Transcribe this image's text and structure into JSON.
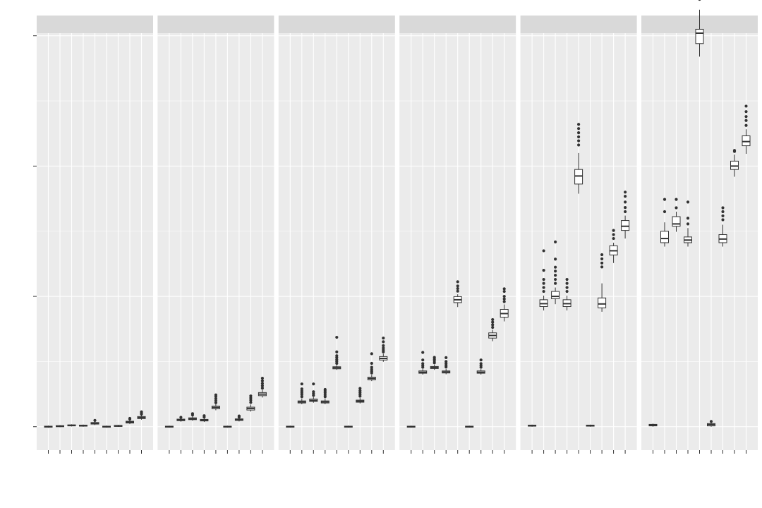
{
  "chart_data": {
    "type": "boxplot",
    "facets": 6,
    "boxes_per_panel": 9,
    "ylim": [
      -0.09,
      1.51
    ],
    "y_major_ticks": [
      0,
      0.5,
      1.0,
      1.5
    ],
    "y_minor_ticks": [
      0.25,
      0.75,
      1.25
    ],
    "grid": true,
    "panels": [
      {
        "boxes": [
          {
            "q1": -0.002,
            "med": 0.0,
            "q3": 0.002,
            "lo": -0.004,
            "hi": 0.004,
            "out": []
          },
          {
            "q1": 0.0,
            "med": 0.002,
            "q3": 0.004,
            "lo": -0.002,
            "hi": 0.006,
            "out": []
          },
          {
            "q1": 0.003,
            "med": 0.005,
            "q3": 0.007,
            "lo": 0.001,
            "hi": 0.009,
            "out": []
          },
          {
            "q1": 0.002,
            "med": 0.004,
            "q3": 0.006,
            "lo": 0.0,
            "hi": 0.008,
            "out": []
          },
          {
            "q1": 0.01,
            "med": 0.013,
            "q3": 0.016,
            "lo": 0.006,
            "hi": 0.02,
            "out": [
              0.024
            ]
          },
          {
            "q1": -0.002,
            "med": 0.0,
            "q3": 0.002,
            "lo": -0.004,
            "hi": 0.004,
            "out": []
          },
          {
            "q1": 0.001,
            "med": 0.003,
            "q3": 0.005,
            "lo": -0.001,
            "hi": 0.007,
            "out": []
          },
          {
            "q1": 0.014,
            "med": 0.017,
            "q3": 0.021,
            "lo": 0.01,
            "hi": 0.026,
            "out": [
              0.029,
              0.032
            ]
          },
          {
            "q1": 0.031,
            "med": 0.035,
            "q3": 0.039,
            "lo": 0.027,
            "hi": 0.044,
            "out": [
              0.048,
              0.053,
              0.057
            ]
          }
        ]
      },
      {
        "boxes": [
          {
            "q1": -0.002,
            "med": 0.0,
            "q3": 0.002,
            "lo": -0.004,
            "hi": 0.004,
            "out": []
          },
          {
            "q1": 0.023,
            "med": 0.026,
            "q3": 0.029,
            "lo": 0.019,
            "hi": 0.033,
            "out": [
              0.036
            ]
          },
          {
            "q1": 0.027,
            "med": 0.03,
            "q3": 0.034,
            "lo": 0.023,
            "hi": 0.04,
            "out": [
              0.045,
              0.05
            ]
          },
          {
            "q1": 0.022,
            "med": 0.025,
            "q3": 0.028,
            "lo": 0.018,
            "hi": 0.033,
            "out": [
              0.037,
              0.042
            ]
          },
          {
            "q1": 0.069,
            "med": 0.074,
            "q3": 0.079,
            "lo": 0.063,
            "hi": 0.087,
            "out": [
              0.092,
              0.1,
              0.108,
              0.116,
              0.122
            ]
          },
          {
            "q1": -0.002,
            "med": 0.0,
            "q3": 0.002,
            "lo": -0.004,
            "hi": 0.004,
            "out": []
          },
          {
            "q1": 0.024,
            "med": 0.027,
            "q3": 0.03,
            "lo": 0.02,
            "hi": 0.034,
            "out": [
              0.037,
              0.041
            ]
          },
          {
            "q1": 0.064,
            "med": 0.07,
            "q3": 0.075,
            "lo": 0.058,
            "hi": 0.085,
            "out": [
              0.093,
              0.102,
              0.11,
              0.118
            ]
          },
          {
            "q1": 0.119,
            "med": 0.125,
            "q3": 0.131,
            "lo": 0.112,
            "hi": 0.141,
            "out": [
              0.148,
              0.157,
              0.166,
              0.176,
              0.186
            ]
          }
        ]
      },
      {
        "boxes": [
          {
            "q1": -0.002,
            "med": 0.0,
            "q3": 0.002,
            "lo": -0.004,
            "hi": 0.004,
            "out": []
          },
          {
            "q1": 0.091,
            "med": 0.095,
            "q3": 0.099,
            "lo": 0.086,
            "hi": 0.108,
            "out": [
              0.115,
              0.123,
              0.13,
              0.137,
              0.145,
              0.164
            ]
          },
          {
            "q1": 0.097,
            "med": 0.101,
            "q3": 0.106,
            "lo": 0.092,
            "hi": 0.114,
            "out": [
              0.12,
              0.127,
              0.134,
              0.164
            ]
          },
          {
            "q1": 0.091,
            "med": 0.095,
            "q3": 0.099,
            "lo": 0.086,
            "hi": 0.108,
            "out": [
              0.115,
              0.122,
              0.13,
              0.137,
              0.143
            ]
          },
          {
            "q1": 0.222,
            "med": 0.226,
            "q3": 0.23,
            "lo": 0.218,
            "hi": 0.236,
            "out": [
              0.243,
              0.25,
              0.257,
              0.265,
              0.272,
              0.287,
              0.343
            ]
          },
          {
            "q1": -0.002,
            "med": 0.0,
            "q3": 0.002,
            "lo": -0.004,
            "hi": 0.004,
            "out": []
          },
          {
            "q1": 0.094,
            "med": 0.098,
            "q3": 0.102,
            "lo": 0.089,
            "hi": 0.11,
            "out": [
              0.117,
              0.124,
              0.131,
              0.138,
              0.147
            ]
          },
          {
            "q1": 0.18,
            "med": 0.185,
            "q3": 0.19,
            "lo": 0.175,
            "hi": 0.199,
            "out": [
              0.206,
              0.213,
              0.22,
              0.228,
              0.243,
              0.28
            ]
          },
          {
            "q1": 0.256,
            "med": 0.262,
            "q3": 0.269,
            "lo": 0.249,
            "hi": 0.28,
            "out": [
              0.287,
              0.294,
              0.302,
              0.311,
              0.326,
              0.34
            ]
          }
        ]
      },
      {
        "boxes": [
          {
            "q1": -0.002,
            "med": 0.0,
            "q3": 0.002,
            "lo": -0.004,
            "hi": 0.004,
            "out": []
          },
          {
            "q1": 0.205,
            "med": 0.209,
            "q3": 0.214,
            "lo": 0.2,
            "hi": 0.221,
            "out": [
              0.228,
              0.235,
              0.242,
              0.256,
              0.285
            ]
          },
          {
            "q1": 0.223,
            "med": 0.227,
            "q3": 0.231,
            "lo": 0.218,
            "hi": 0.238,
            "out": [
              0.245,
              0.252,
              0.259,
              0.266
            ]
          },
          {
            "q1": 0.206,
            "med": 0.21,
            "q3": 0.214,
            "lo": 0.201,
            "hi": 0.222,
            "out": [
              0.229,
              0.236,
              0.243,
              0.25,
              0.265
            ]
          },
          {
            "q1": 0.476,
            "med": 0.487,
            "q3": 0.499,
            "lo": 0.459,
            "hi": 0.508,
            "out": [
              0.52,
              0.53,
              0.54,
              0.556
            ]
          },
          {
            "q1": -0.002,
            "med": 0.0,
            "q3": 0.002,
            "lo": -0.004,
            "hi": 0.004,
            "out": []
          },
          {
            "q1": 0.205,
            "med": 0.209,
            "q3": 0.214,
            "lo": 0.2,
            "hi": 0.221,
            "out": [
              0.228,
              0.235,
              0.242,
              0.256
            ]
          },
          {
            "q1": 0.34,
            "med": 0.35,
            "q3": 0.36,
            "lo": 0.328,
            "hi": 0.372,
            "out": [
              0.381,
              0.391,
              0.401,
              0.411
            ]
          },
          {
            "q1": 0.42,
            "med": 0.434,
            "q3": 0.45,
            "lo": 0.404,
            "hi": 0.469,
            "out": [
              0.48,
              0.49,
              0.5,
              0.519,
              0.529
            ]
          }
        ]
      },
      {
        "boxes": [
          {
            "q1": 0.002,
            "med": 0.004,
            "q3": 0.006,
            "lo": 0.0,
            "hi": 0.008,
            "out": []
          },
          {
            "q1": 0.461,
            "med": 0.472,
            "q3": 0.487,
            "lo": 0.446,
            "hi": 0.503,
            "out": [
              0.519,
              0.534,
              0.55,
              0.565,
              0.6,
              0.675
            ]
          },
          {
            "q1": 0.491,
            "med": 0.5,
            "q3": 0.519,
            "lo": 0.47,
            "hi": 0.534,
            "out": [
              0.55,
              0.565,
              0.581,
              0.597,
              0.612,
              0.643,
              0.709
            ]
          },
          {
            "q1": 0.461,
            "med": 0.472,
            "q3": 0.487,
            "lo": 0.446,
            "hi": 0.503,
            "out": [
              0.519,
              0.534,
              0.55,
              0.565
            ]
          },
          {
            "q1": 0.931,
            "med": 0.962,
            "q3": 0.987,
            "lo": 0.894,
            "hi": 1.05,
            "out": [
              1.081,
              1.097,
              1.112,
              1.128,
              1.144,
              1.16
            ]
          },
          {
            "q1": 0.002,
            "med": 0.004,
            "q3": 0.006,
            "lo": 0.0,
            "hi": 0.008,
            "out": []
          },
          {
            "q1": 0.456,
            "med": 0.471,
            "q3": 0.494,
            "lo": 0.441,
            "hi": 0.55,
            "out": [
              0.613,
              0.628,
              0.644,
              0.66
            ]
          },
          {
            "q1": 0.659,
            "med": 0.675,
            "q3": 0.694,
            "lo": 0.628,
            "hi": 0.706,
            "out": [
              0.722,
              0.737,
              0.753
            ]
          },
          {
            "q1": 0.753,
            "med": 0.769,
            "q3": 0.791,
            "lo": 0.722,
            "hi": 0.81,
            "out": [
              0.825,
              0.841,
              0.862,
              0.884,
              0.9
            ]
          }
        ]
      },
      {
        "boxes": [
          {
            "q1": 0.003,
            "med": 0.006,
            "q3": 0.009,
            "lo": 0.0,
            "hi": 0.012,
            "out": []
          },
          {
            "q1": 0.706,
            "med": 0.722,
            "q3": 0.75,
            "lo": 0.691,
            "hi": 0.784,
            "out": [
              0.825,
              0.872
            ]
          },
          {
            "q1": 0.769,
            "med": 0.778,
            "q3": 0.806,
            "lo": 0.748,
            "hi": 0.825,
            "out": [
              0.84,
              0.872
            ]
          },
          {
            "q1": 0.706,
            "med": 0.716,
            "q3": 0.728,
            "lo": 0.691,
            "hi": 0.762,
            "out": [
              0.778,
              0.8,
              0.862
            ]
          },
          {
            "q1": 1.47,
            "med": 1.51,
            "q3": 1.525,
            "lo": 1.42,
            "hi": 1.6,
            "out": [
              1.64,
              1.655
            ]
          },
          {
            "q1": 0.003,
            "med": 0.008,
            "q3": 0.012,
            "lo": 0.0,
            "hi": 0.016,
            "out": [
              0.02
            ]
          },
          {
            "q1": 0.706,
            "med": 0.72,
            "q3": 0.737,
            "lo": 0.691,
            "hi": 0.775,
            "out": [
              0.794,
              0.809,
              0.825,
              0.84
            ]
          },
          {
            "q1": 0.987,
            "med": 1.0,
            "q3": 1.019,
            "lo": 0.959,
            "hi": 1.044,
            "out": [
              1.056,
              1.06
            ]
          },
          {
            "q1": 1.078,
            "med": 1.094,
            "q3": 1.116,
            "lo": 1.047,
            "hi": 1.141,
            "out": [
              1.156,
              1.175,
              1.19,
              1.209,
              1.23
            ]
          }
        ]
      }
    ]
  }
}
